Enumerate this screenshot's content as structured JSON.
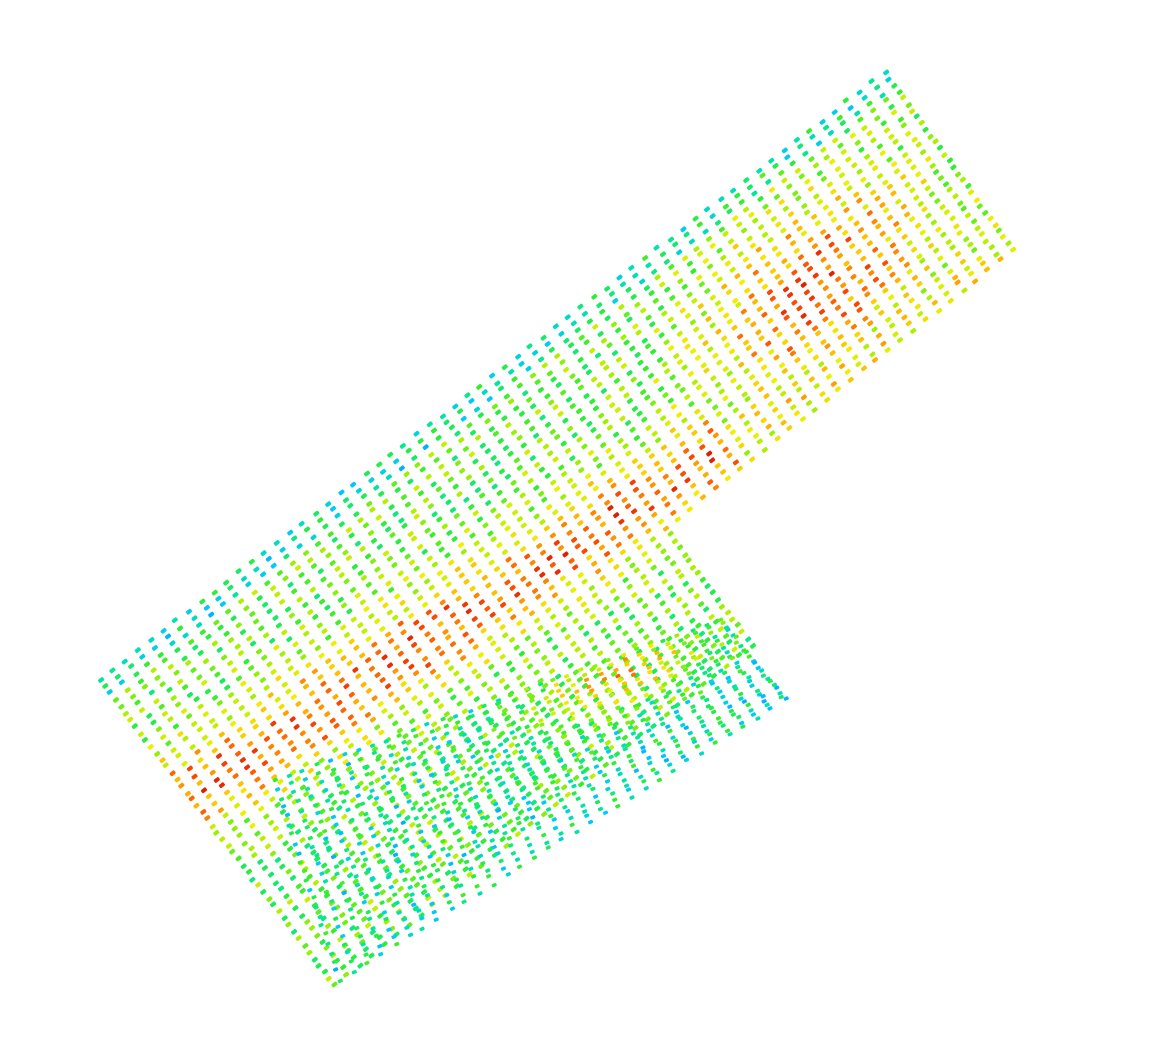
{
  "scene": {
    "type": "point-cloud",
    "colormap": "jet",
    "background_color": "#ffffff",
    "grid": "off",
    "legend": "none",
    "colormap_stops": [
      "#0050ff",
      "#00c8ff",
      "#00e6a0",
      "#30ee30",
      "#a8f000",
      "#f0f000",
      "#ffb400",
      "#ff5000",
      "#e01e00"
    ],
    "surfaces": [
      {
        "name": "upper-plate",
        "rows": 46,
        "cols": 62,
        "hot_region": "right-center",
        "cool_region": "upper-left-edge"
      },
      {
        "name": "lower-fold",
        "rows": 22,
        "cols": 32,
        "hot_region": "upper-right",
        "cool_region": "lower-left"
      }
    ]
  }
}
